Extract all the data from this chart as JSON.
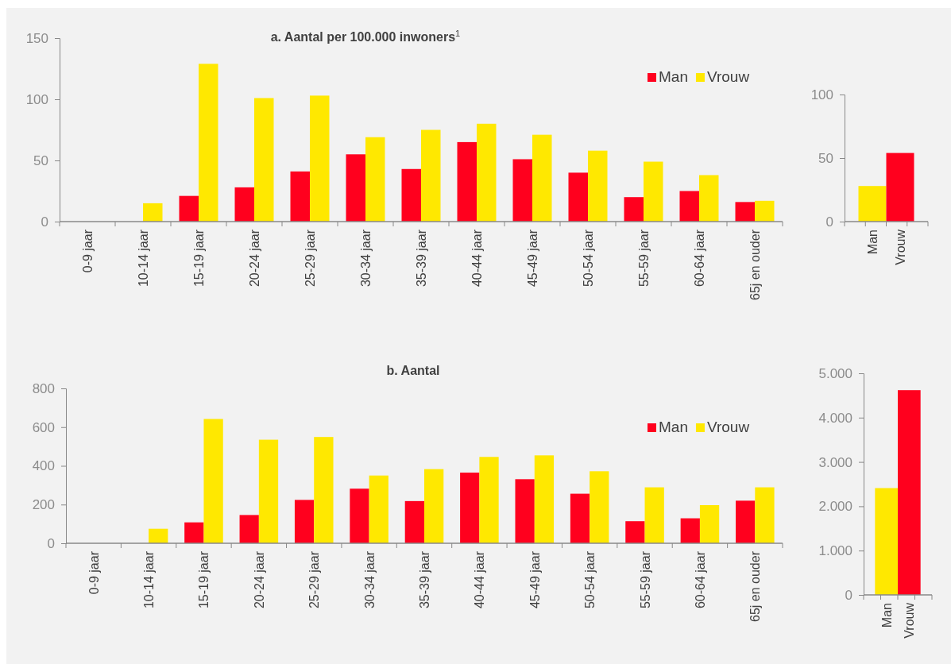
{
  "chart_data": [
    {
      "type": "bar",
      "title": "a. Aantal per 100.000 inwoners$^{1}$",
      "categories": [
        "0-9 jaar",
        "10-14 jaar",
        "15-19 jaar",
        "20-24 jaar",
        "25-29 jaar",
        "30-34 jaar",
        "35-39 jaar",
        "40-44 jaar",
        "45-49 jaar",
        "50-54 jaar",
        "55-59 jaar",
        "60-64 jaar",
        "65j en ouder"
      ],
      "series": [
        {
          "name": "Man",
          "color": "#ff001e",
          "values": [
            0,
            0,
            21,
            28,
            41,
            55,
            43,
            65,
            51,
            40,
            20,
            25,
            16
          ]
        },
        {
          "name": "Vrouw",
          "color": "#ffe800",
          "values": [
            0,
            15,
            129,
            101,
            103,
            69,
            75,
            80,
            71,
            58,
            49,
            38,
            17
          ]
        }
      ],
      "ylim": [
        0,
        150
      ],
      "yticks": [
        0,
        50,
        100,
        150
      ],
      "legend": "top right",
      "grid": false
    },
    {
      "type": "bar",
      "categories": [
        "Man",
        "Vrouw"
      ],
      "values": [
        28,
        54
      ],
      "colors": [
        "#ffe800",
        "#ff001e"
      ],
      "ylim": [
        0,
        100
      ],
      "yticks": [
        0,
        50,
        100
      ],
      "grid": false
    },
    {
      "type": "bar",
      "title": "b. Aantal",
      "categories": [
        "0-9 jaar",
        "10-14 jaar",
        "15-19 jaar",
        "20-24 jaar",
        "25-29 jaar",
        "30-34 jaar",
        "35-39 jaar",
        "40-44 jaar",
        "45-49 jaar",
        "50-54 jaar",
        "55-59 jaar",
        "60-64 jaar",
        "65j en ouder"
      ],
      "series": [
        {
          "name": "Man",
          "color": "#ff001e",
          "values": [
            0,
            0,
            108,
            146,
            224,
            282,
            218,
            365,
            331,
            256,
            114,
            129,
            220
          ]
        },
        {
          "name": "Vrouw",
          "color": "#ffe800",
          "values": [
            0,
            75,
            642,
            535,
            549,
            350,
            383,
            446,
            454,
            372,
            289,
            197,
            289
          ]
        }
      ],
      "ylim": [
        0,
        800
      ],
      "yticks": [
        0,
        200,
        400,
        600,
        800
      ],
      "legend": "top right",
      "grid": false
    },
    {
      "type": "bar",
      "categories": [
        "Man",
        "Vrouw"
      ],
      "values": [
        2410,
        4620
      ],
      "colors": [
        "#ffe800",
        "#ff001e"
      ],
      "ylim": [
        0,
        5000
      ],
      "yticks": [
        0,
        {
          "value": 1000,
          "label": "1.000"
        },
        {
          "value": 2000,
          "label": "2.000"
        },
        {
          "value": 3000,
          "label": "3.000"
        },
        {
          "value": 4000,
          "label": "4.000"
        },
        {
          "value": 5000,
          "label": "5.000"
        }
      ],
      "grid": false
    }
  ]
}
